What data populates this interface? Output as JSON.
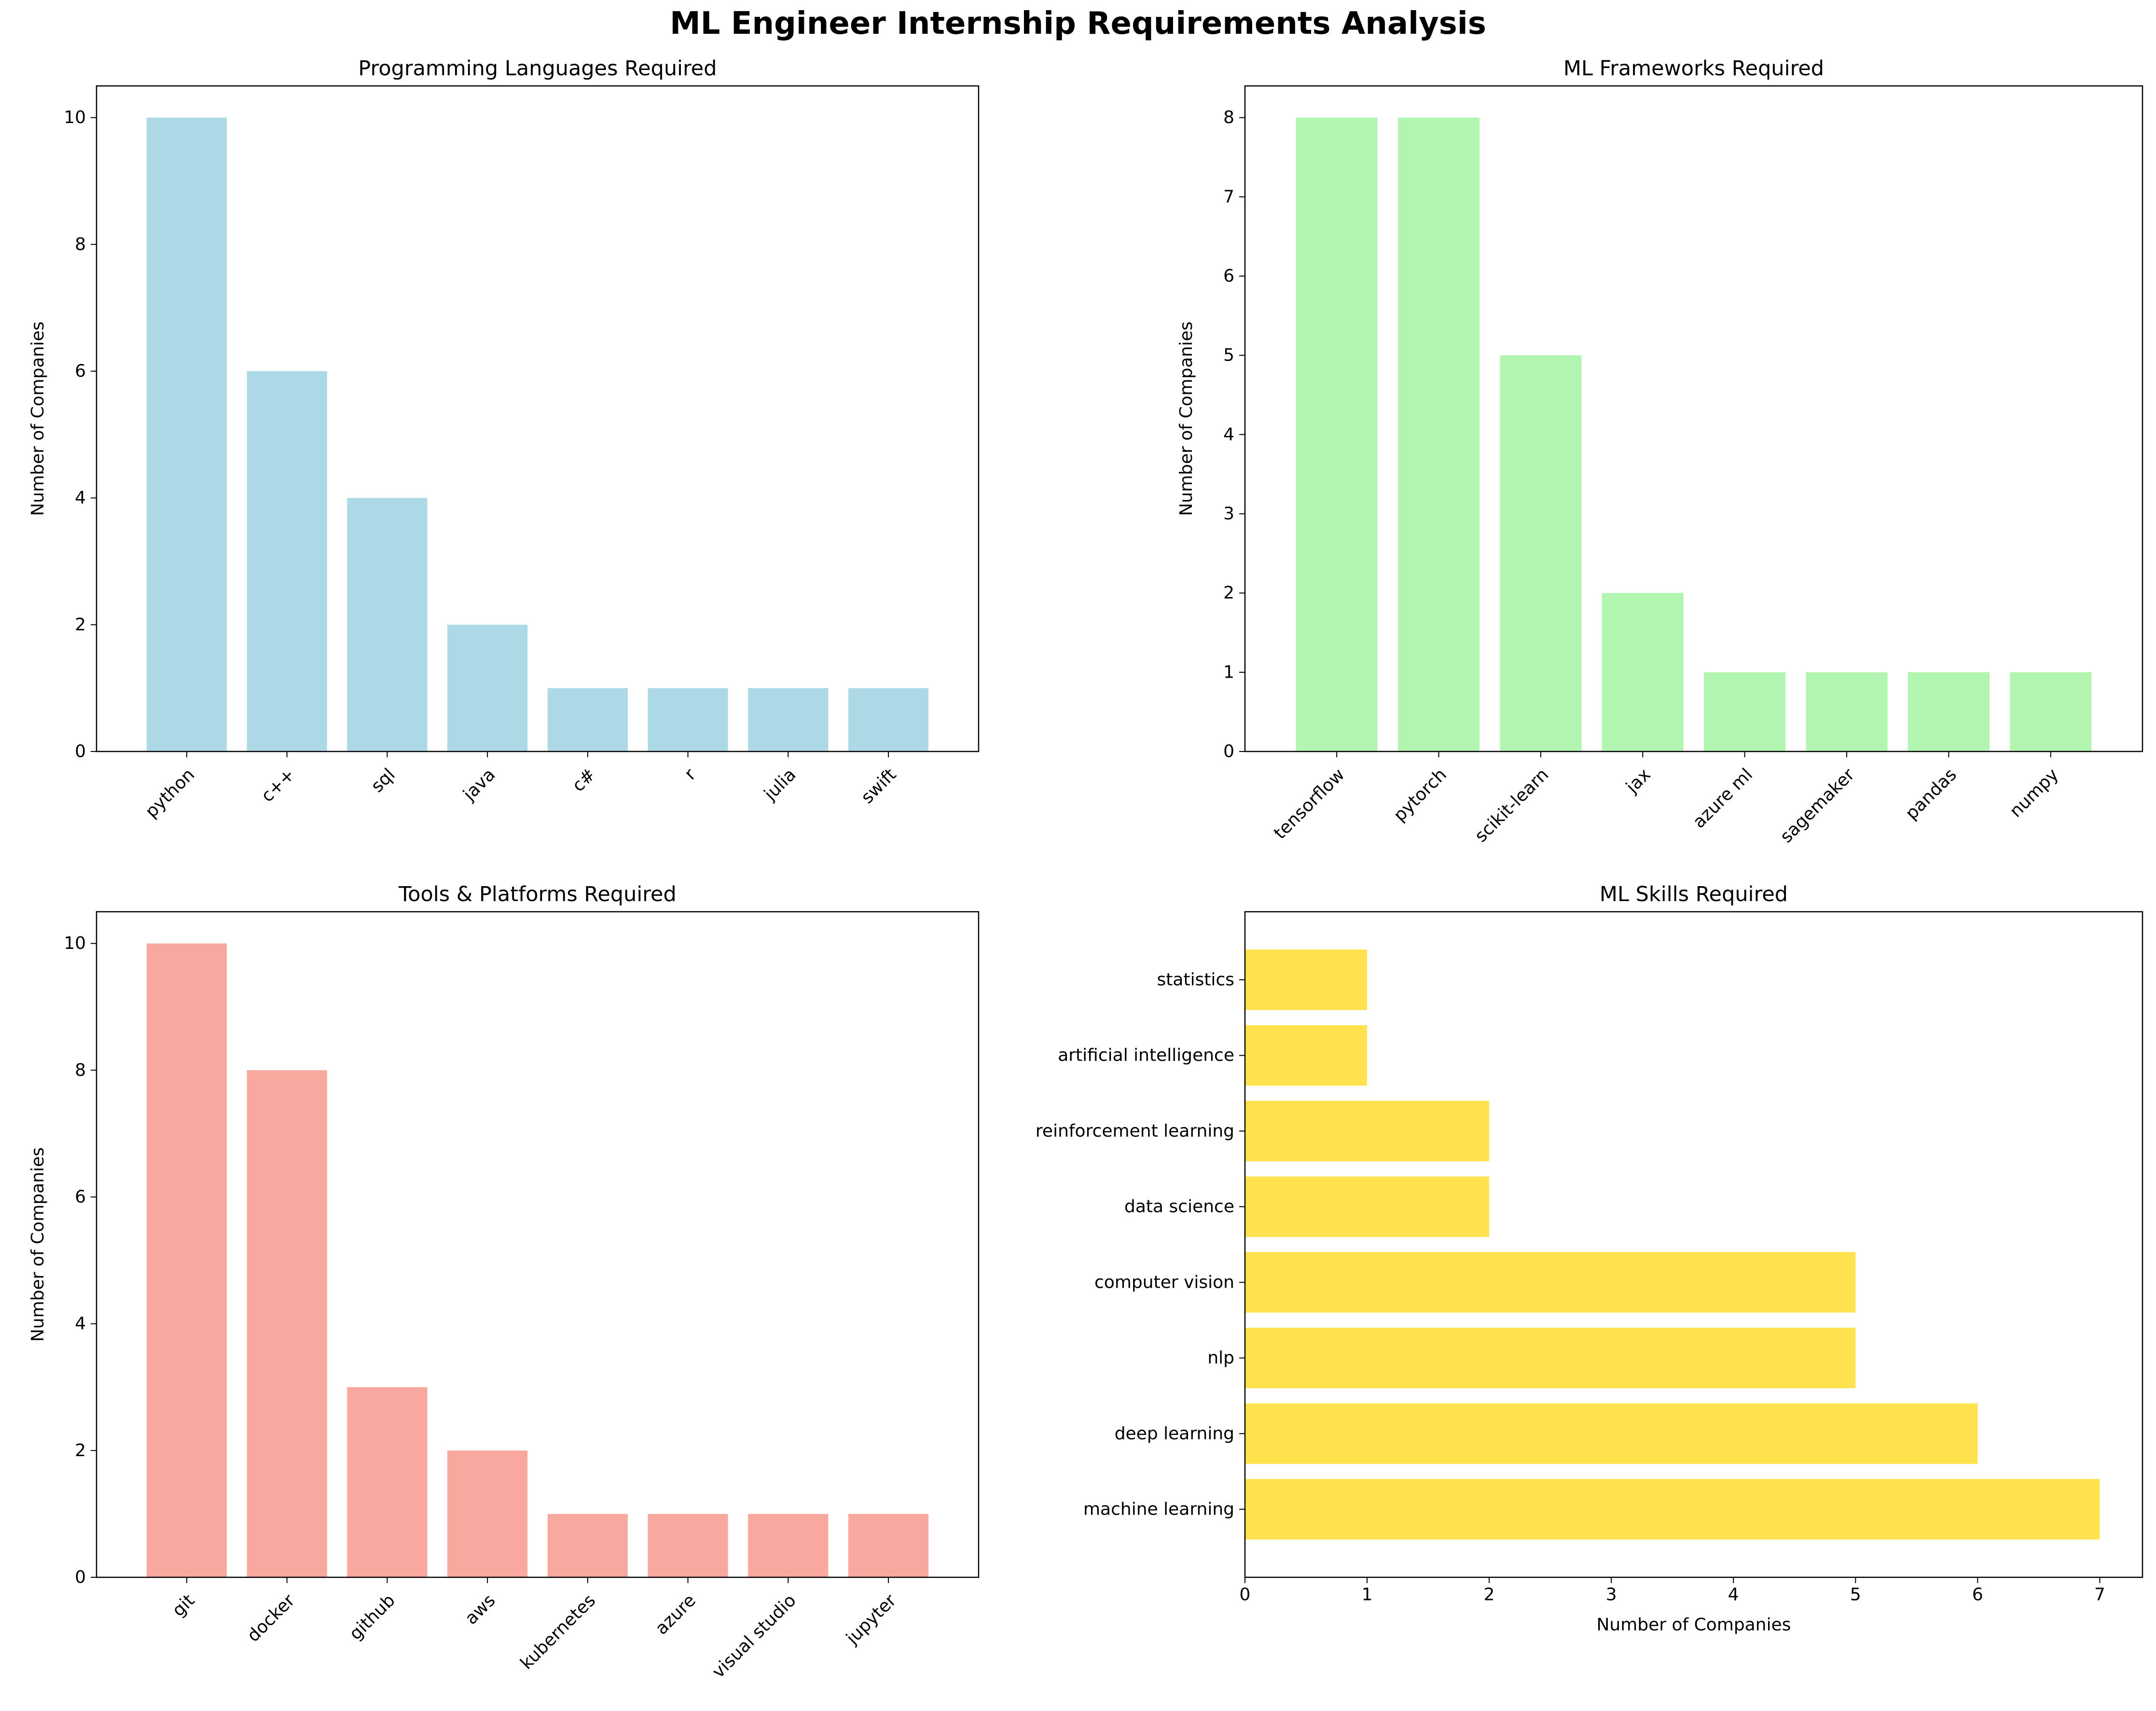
{
  "figure": {
    "title": "ML Engineer Internship Requirements Analysis"
  },
  "chart_data": [
    {
      "type": "bar",
      "orientation": "vertical",
      "title": "Programming Languages Required",
      "xlabel": "",
      "ylabel": "Number of Companies",
      "categories": [
        "python",
        "c++",
        "sql",
        "java",
        "c#",
        "r",
        "julia",
        "swift"
      ],
      "values": [
        10,
        6,
        4,
        2,
        1,
        1,
        1,
        1
      ],
      "ylim": [
        0,
        10.5
      ],
      "ticks": [
        0,
        2,
        4,
        6,
        8,
        10
      ],
      "color": "#add8e6",
      "grid": false
    },
    {
      "type": "bar",
      "orientation": "vertical",
      "title": "ML Frameworks Required",
      "xlabel": "",
      "ylabel": "Number of Companies",
      "categories": [
        "tensorflow",
        "pytorch",
        "scikit-learn",
        "jax",
        "azure ml",
        "sagemaker",
        "pandas",
        "numpy"
      ],
      "values": [
        8,
        8,
        5,
        2,
        1,
        1,
        1,
        1
      ],
      "ylim": [
        0,
        8.4
      ],
      "ticks": [
        0,
        1,
        2,
        3,
        4,
        5,
        6,
        7,
        8
      ],
      "color": "#b2f5b0",
      "grid": false
    },
    {
      "type": "bar",
      "orientation": "vertical",
      "title": "Tools & Platforms Required",
      "xlabel": "",
      "ylabel": "Number of Companies",
      "categories": [
        "git",
        "docker",
        "github",
        "aws",
        "kubernetes",
        "azure",
        "visual studio",
        "jupyter"
      ],
      "values": [
        10,
        8,
        3,
        2,
        1,
        1,
        1,
        1
      ],
      "ylim": [
        0,
        10.5
      ],
      "ticks": [
        0,
        2,
        4,
        6,
        8,
        10
      ],
      "color": "#f9a8a0",
      "grid": false
    },
    {
      "type": "bar",
      "orientation": "horizontal",
      "title": "ML Skills Required",
      "xlabel": "Number of Companies",
      "ylabel": "",
      "categories": [
        "machine learning",
        "deep learning",
        "nlp",
        "computer vision",
        "data science",
        "reinforcement learning",
        "artificial intelligence",
        "statistics"
      ],
      "values": [
        7,
        6,
        5,
        5,
        2,
        2,
        1,
        1
      ],
      "xlim": [
        0,
        7.35
      ],
      "ticks": [
        0,
        1,
        2,
        3,
        4,
        5,
        6,
        7
      ],
      "color": "#ffe24d",
      "grid": false
    }
  ]
}
